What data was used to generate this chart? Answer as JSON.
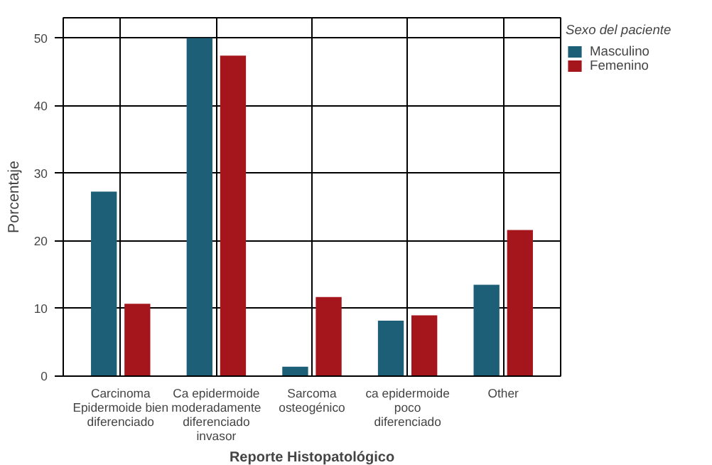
{
  "chart_data": {
    "type": "bar",
    "xlabel": "Reporte Histopatológico",
    "ylabel": "Porcentaje",
    "legend_title": "Sexo del paciente",
    "categories": [
      "Carcinoma\nEpidermoide bien\ndiferenciado",
      "Ca epidermoide\nmoderadamente\ndiferenciado\ninvasor",
      "Sarcoma\nosteogénico",
      "ca epidermoide\npoco\ndiferenciado",
      "Other"
    ],
    "series": [
      {
        "name": "Masculino",
        "color": "#1d5f77",
        "values": [
          27.3,
          50.0,
          1.4,
          8.2,
          13.5
        ]
      },
      {
        "name": "Femenino",
        "color": "#a4161c",
        "values": [
          10.7,
          47.4,
          11.7,
          9.0,
          21.6
        ]
      }
    ],
    "ylim": [
      0,
      53
    ],
    "yticks": [
      0,
      10,
      20,
      30,
      40,
      50
    ],
    "grid": true,
    "legend": "top right"
  }
}
